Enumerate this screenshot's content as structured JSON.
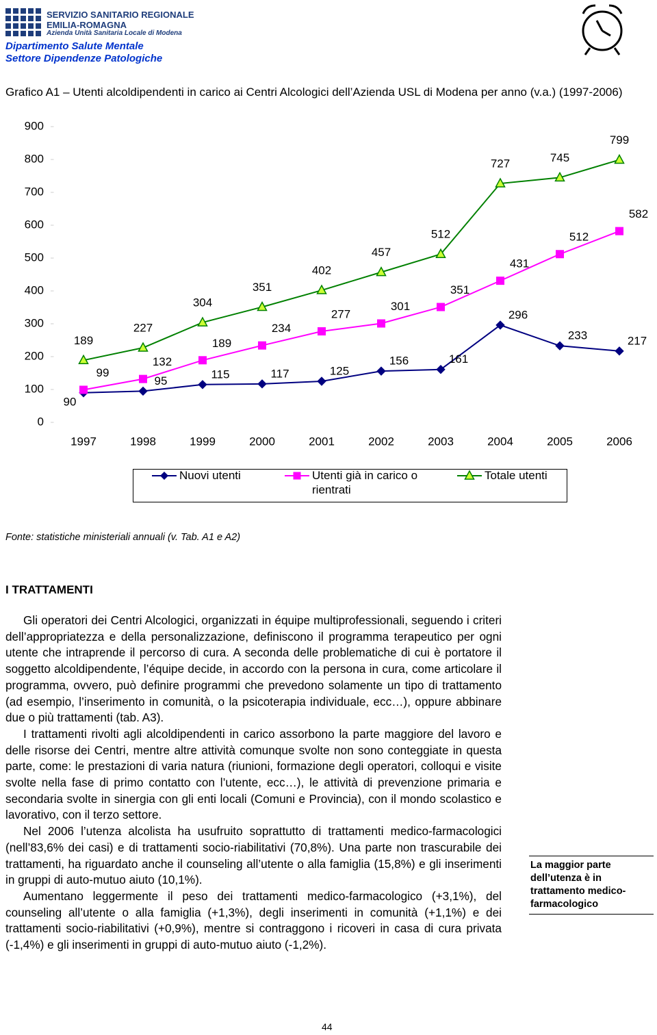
{
  "header": {
    "org_line1": "SERVIZIO SANITARIO REGIONALE",
    "org_line2": "EMILIA-ROMAGNA",
    "org_line3": "Azienda Unità Sanitaria Locale di Modena",
    "department": "Dipartimento Salute Mentale",
    "sector": "Settore Dipendenze Patologiche"
  },
  "chart_data": {
    "type": "line",
    "title": "Grafico A1 – Utenti alcoldipendenti in carico ai Centri Alcologici dell’Azienda USL di Modena per anno (v.a.) (1997-2006)",
    "categories": [
      "1997",
      "1998",
      "1999",
      "2000",
      "2001",
      "2002",
      "2003",
      "2004",
      "2005",
      "2006"
    ],
    "series": [
      {
        "name": "Nuovi utenti",
        "color": "#000080",
        "marker": "diamond",
        "values": [
          90,
          95,
          115,
          117,
          125,
          156,
          161,
          296,
          233,
          217
        ]
      },
      {
        "name": "Utenti già in carico o rientrati",
        "color": "#ff00ff",
        "marker": "square",
        "values": [
          99,
          132,
          189,
          234,
          277,
          301,
          351,
          431,
          512,
          582
        ]
      },
      {
        "name": "Totale utenti",
        "color": "#008000",
        "marker": "triangle",
        "values": [
          189,
          227,
          304,
          351,
          402,
          457,
          512,
          727,
          745,
          799
        ]
      }
    ],
    "ylim": [
      0,
      900
    ],
    "yticks": [
      0,
      100,
      200,
      300,
      400,
      500,
      600,
      700,
      800,
      900
    ],
    "grid": false,
    "legend": "bottom",
    "data_labels": true
  },
  "source": "Fonte: statistiche ministeriali annuali (v. Tab. A1 e A2)",
  "section_title": "I TRATTAMENTI",
  "paragraphs": [
    "Gli operatori dei Centri Alcologici, organizzati in équipe multiprofessionali, seguendo i criteri dell’appropriatezza e della personalizzazione, definiscono il programma terapeutico per ogni utente che intraprende il percorso di cura. A seconda delle problematiche di cui è portatore il soggetto alcoldipendente, l’équipe decide, in accordo con la persona in cura, come articolare il programma, ovvero, può definire programmi che prevedono solamente un tipo di trattamento (ad esempio, l’inserimento in comunità, o la psicoterapia individuale, ecc…), oppure abbinare due o più trattamenti (tab. A3).",
    "I trattamenti rivolti agli alcoldipendenti in carico assorbono la parte maggiore del lavoro e delle risorse dei Centri, mentre altre attività comunque svolte non sono conteggiate in questa parte, come: le prestazioni di varia natura (riunioni, formazione degli operatori, colloqui e visite svolte nella fase di primo contatto con l’utente, ecc…), le attività di prevenzione primaria e secondaria svolte in sinergia con gli enti locali (Comuni e Provincia), con il mondo scolastico e lavorativo, con il terzo settore.",
    "Nel 2006 l’utenza alcolista ha usufruito soprattutto di trattamenti medico-farmacologici (nell’83,6% dei casi) e di trattamenti socio-riabilitativi (70,8%). Una parte non trascurabile dei trattamenti, ha riguardato anche il counseling all’utente o alla famiglia (15,8%) e gli inserimenti in gruppi di auto-mutuo aiuto (10,1%).",
    "Aumentano leggermente il peso dei trattamenti medico-farmacologico (+3,1%), del counseling all’utente o alla famiglia (+1,3%), degli inserimenti in comunità (+1,1%) e dei trattamenti socio-riabilitativi (+0,9%), mentre si contraggono i ricoveri in casa di cura privata (-1,4%) e gli inserimenti in gruppi di auto-mutuo aiuto (-1,2%)."
  ],
  "sidenote": "La maggior parte dell’utenza è in trattamento medico-farmacologico",
  "page_number": "44"
}
